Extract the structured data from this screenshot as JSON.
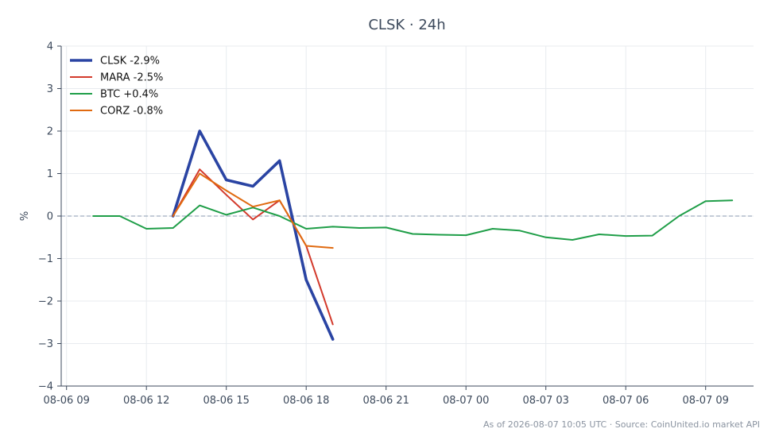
{
  "chart_data": {
    "type": "line",
    "title": "CLSK · 24h",
    "ylabel": "%",
    "xlabel": "",
    "ylim": [
      -4,
      4
    ],
    "xlim": [
      "2026-08-06 08:48",
      "2026-08-07 10:48"
    ],
    "yticks": [
      -4,
      -3,
      -2,
      -1,
      0,
      1,
      2,
      3,
      4
    ],
    "ytick_labels": [
      "−4",
      "−3",
      "−2",
      "−1",
      "0",
      "1",
      "2",
      "3",
      "4"
    ],
    "xticks": [
      "2026-08-06 09:00",
      "2026-08-06 12:00",
      "2026-08-06 15:00",
      "2026-08-06 18:00",
      "2026-08-06 21:00",
      "2026-08-07 00:00",
      "2026-08-07 03:00",
      "2026-08-07 06:00",
      "2026-08-07 09:00"
    ],
    "xtick_labels": [
      "08-06 09",
      "08-06 12",
      "08-06 15",
      "08-06 18",
      "08-06 21",
      "08-07 00",
      "08-07 03",
      "08-07 06",
      "08-07 09"
    ],
    "grid": true,
    "zero_line": true,
    "legend_position": "top-left",
    "series": [
      {
        "name": "CLSK -2.9%",
        "color": "#2a44a3",
        "emphasis": true,
        "x": [
          "2026-08-06 13:00",
          "2026-08-06 14:00",
          "2026-08-06 15:00",
          "2026-08-06 16:00",
          "2026-08-06 17:00",
          "2026-08-06 18:00",
          "2026-08-06 19:00"
        ],
        "values": [
          0.0,
          2.0,
          0.85,
          0.7,
          1.3,
          -1.5,
          -2.9
        ]
      },
      {
        "name": "MARA -2.5%",
        "color": "#d33a2c",
        "x": [
          "2026-08-06 13:00",
          "2026-08-06 14:00",
          "2026-08-06 15:00",
          "2026-08-06 16:00",
          "2026-08-06 17:00",
          "2026-08-06 18:00",
          "2026-08-06 19:00"
        ],
        "values": [
          0.0,
          1.1,
          0.5,
          -0.08,
          0.37,
          -0.7,
          -2.55
        ]
      },
      {
        "name": "BTC +0.4%",
        "color": "#1f9e48",
        "x": [
          "2026-08-06 10:00",
          "2026-08-06 11:00",
          "2026-08-06 12:00",
          "2026-08-06 13:00",
          "2026-08-06 14:00",
          "2026-08-06 15:00",
          "2026-08-06 16:00",
          "2026-08-06 17:00",
          "2026-08-06 18:00",
          "2026-08-06 19:00",
          "2026-08-06 20:00",
          "2026-08-06 21:00",
          "2026-08-06 22:00",
          "2026-08-06 23:00",
          "2026-08-07 00:00",
          "2026-08-07 01:00",
          "2026-08-07 02:00",
          "2026-08-07 03:00",
          "2026-08-07 04:00",
          "2026-08-07 05:00",
          "2026-08-07 06:00",
          "2026-08-07 07:00",
          "2026-08-07 08:00",
          "2026-08-07 09:00",
          "2026-08-07 10:00"
        ],
        "values": [
          0.0,
          0.0,
          -0.3,
          -0.28,
          0.25,
          0.03,
          0.2,
          0.0,
          -0.3,
          -0.25,
          -0.28,
          -0.27,
          -0.42,
          -0.44,
          -0.45,
          -0.3,
          -0.34,
          -0.5,
          -0.56,
          -0.43,
          -0.47,
          -0.46,
          0.0,
          0.35,
          0.37
        ]
      },
      {
        "name": "CORZ -0.8%",
        "color": "#e06a10",
        "x": [
          "2026-08-06 13:00",
          "2026-08-06 14:00",
          "2026-08-06 15:00",
          "2026-08-06 16:00",
          "2026-08-06 17:00",
          "2026-08-06 18:00",
          "2026-08-06 19:00"
        ],
        "values": [
          0.0,
          1.0,
          0.6,
          0.22,
          0.37,
          -0.7,
          -0.75
        ]
      }
    ],
    "footnote": "As of 2026-08-07 10:05 UTC · Source: CoinUnited.io market API"
  }
}
